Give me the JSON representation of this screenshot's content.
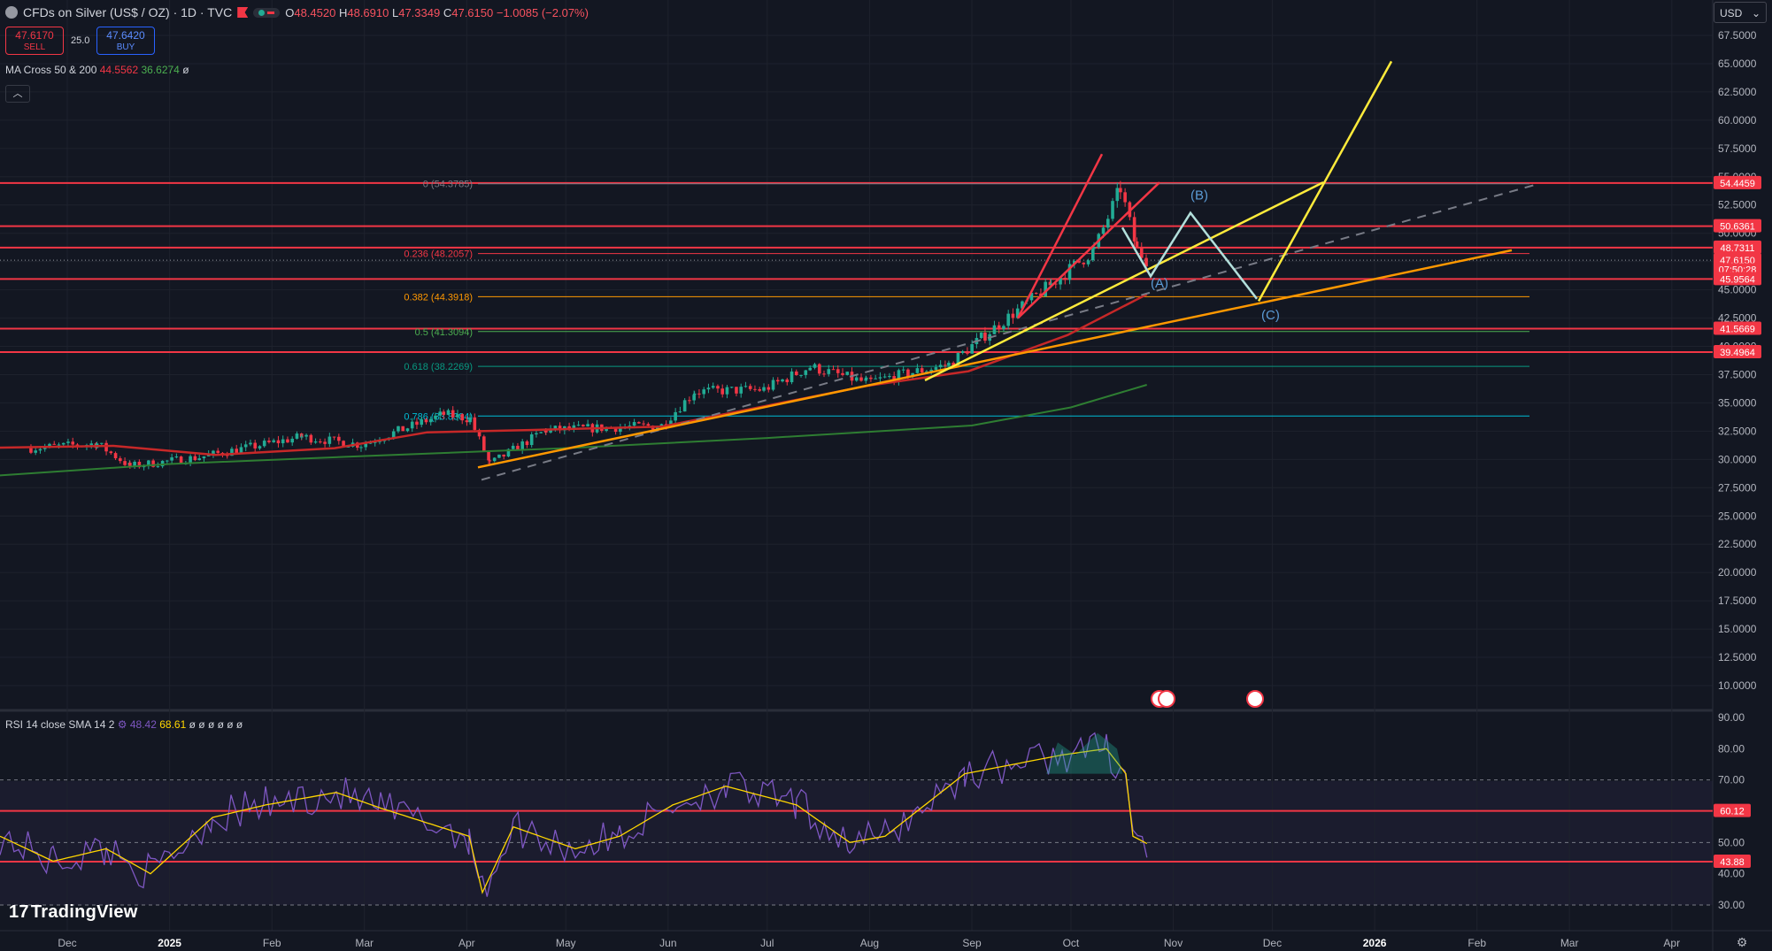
{
  "header": {
    "title": "CFDs on Silver (US$ / OZ) · 1D · TVC",
    "ohlc": {
      "open_label": "O",
      "open": "48.4520",
      "high_label": "H",
      "high": "48.6910",
      "low_label": "L",
      "low": "47.3349",
      "close_label": "C",
      "close": "47.6150",
      "change": "−1.0085 (−2.07%)"
    }
  },
  "trade": {
    "sell_price": "47.6170",
    "sell_label": "SELL",
    "buy_price": "47.6420",
    "buy_label": "BUY",
    "spread": "25.0"
  },
  "ma_legend": {
    "name": "MA Cross 50 & 200",
    "v1": "44.5562",
    "v2": "36.6274",
    "extra": "ø"
  },
  "rsi_legend": {
    "name": "RSI 14 close SMA 14 2",
    "v1": "48.42",
    "v2": "68.61",
    "extra": "ø ø ø ø ø ø"
  },
  "currency": "USD",
  "logo": "TradingView",
  "colors": {
    "bg": "#131722",
    "grid": "#1e222d",
    "up": "#22ab94",
    "down": "#f23645",
    "level_red": "#f23645",
    "yellow": "#ffeb3b",
    "orange": "#ff9800",
    "ma50": "#c62828",
    "ma200": "#2e7d32",
    "rsi": "#7e57c2",
    "rsi_ma": "#ffd600",
    "wave": "#b2dfdb"
  },
  "chart_data": {
    "type": "candlestick",
    "x_ticks": [
      "Dec",
      "2025",
      "Feb",
      "Mar",
      "Apr",
      "May",
      "Jun",
      "Jul",
      "Aug",
      "Sep",
      "Oct",
      "Nov",
      "Dec",
      "2026",
      "Feb",
      "Mar",
      "Apr"
    ],
    "y_ticks": [
      "67.5000",
      "65.0000",
      "62.5000",
      "60.0000",
      "57.5000",
      "55.0000",
      "52.5000",
      "50.0000",
      "47.5000",
      "45.0000",
      "42.5000",
      "40.0000",
      "37.5000",
      "35.0000",
      "32.5000",
      "30.0000",
      "27.5000",
      "25.0000",
      "22.5000",
      "20.0000",
      "17.5000",
      "15.0000",
      "12.5000",
      "10.0000"
    ],
    "price_labels": [
      {
        "text": "54.4459",
        "value": 54.4459
      },
      {
        "text": "50.6361",
        "value": 50.6361
      },
      {
        "text": "48.7311",
        "value": 48.7311
      },
      {
        "text": "47.6150",
        "value": 47.615
      },
      {
        "text": "07:50:28",
        "value": 46.9
      },
      {
        "text": "45.9564",
        "value": 45.9564
      },
      {
        "text": "41.5669",
        "value": 41.5669
      },
      {
        "text": "39.4964",
        "value": 39.4964
      }
    ],
    "horizontal_levels": [
      54.4459,
      50.6361,
      48.7311,
      45.9564,
      41.5669,
      39.4964
    ],
    "fib_levels": [
      {
        "label": "0 (54.3785)",
        "value": 54.3785,
        "color": "#787b86"
      },
      {
        "label": "0.236 (48.2057)",
        "value": 48.2057,
        "color": "#f23645"
      },
      {
        "label": "0.382 (44.3918)",
        "value": 44.3918,
        "color": "#ff9800"
      },
      {
        "label": "0.5 (41.3094)",
        "value": 41.3094,
        "color": "#4caf50"
      },
      {
        "label": "0.618 (38.2269)",
        "value": 38.2269,
        "color": "#089981"
      },
      {
        "label": "0.786 (33.8384)",
        "value": 33.8384,
        "color": "#00bcd4"
      }
    ],
    "wave_labels": [
      "(A)",
      "(B)",
      "(C)"
    ],
    "candle_anchors": [
      [
        "2024-11-20",
        31.0
      ],
      [
        "2024-12-10",
        31.4
      ],
      [
        "2024-12-20",
        29.4
      ],
      [
        "2025-01-10",
        30.2
      ],
      [
        "2025-02-10",
        32.0
      ],
      [
        "2025-02-28",
        31.3
      ],
      [
        "2025-03-25",
        34.0
      ],
      [
        "2025-04-02",
        33.6
      ],
      [
        "2025-04-08",
        29.6
      ],
      [
        "2025-04-25",
        32.6
      ],
      [
        "2025-05-30",
        33.0
      ],
      [
        "2025-06-09",
        36.0
      ],
      [
        "2025-06-30",
        36.2
      ],
      [
        "2025-07-14",
        38.2
      ],
      [
        "2025-07-31",
        36.8
      ],
      [
        "2025-08-25",
        38.4
      ],
      [
        "2025-09-05",
        41.0
      ],
      [
        "2025-09-25",
        45.5
      ],
      [
        "2025-10-08",
        48.5
      ],
      [
        "2025-10-16",
        54.0
      ],
      [
        "2025-10-21",
        48.5
      ],
      [
        "2025-10-24",
        47.6
      ]
    ],
    "rsi": {
      "y_ticks": [
        "90.00",
        "80.00",
        "70.00",
        "60.00",
        "50.00",
        "40.00",
        "30.00"
      ],
      "levels": [
        60.12,
        43.88
      ],
      "level_labels": [
        "60.12",
        "43.88"
      ],
      "overbought": 70,
      "oversold": 30,
      "mid": 50
    }
  }
}
